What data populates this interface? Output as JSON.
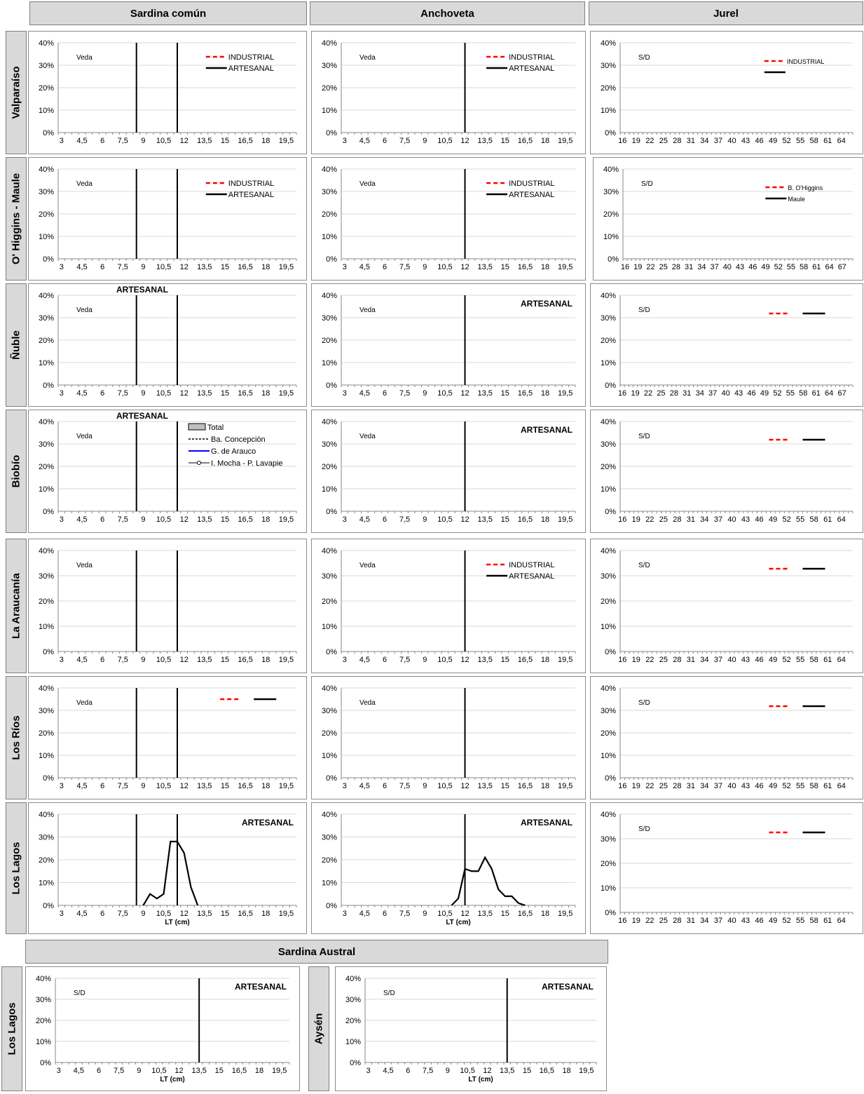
{
  "headers": {
    "top": [
      "Sardina común",
      "Anchoveta",
      "Jurel"
    ],
    "bottom": "Sardina Austral"
  },
  "regions": [
    "Valparaíso",
    "O' Higgins - Maule",
    "Ñuble",
    "Biobío",
    "La Araucanía",
    "Los Ríos",
    "Los Lagos"
  ],
  "bottom_regions": [
    "Los Lagos",
    "Aysén"
  ],
  "colors": {
    "industrial": "#ff0000",
    "artesanal": "#000000",
    "grid": "#d9d9d9",
    "gao": "#0000ff"
  },
  "chart_data": [
    {
      "id": "sc-valparaiso",
      "type": "line",
      "xaxis": "sardina",
      "ylim": [
        0,
        0.4
      ],
      "yticks": [
        "0%",
        "10%",
        "20%",
        "30%",
        "40%"
      ],
      "vlines": [
        "8,5",
        "11,5"
      ],
      "note": "Veda",
      "legend": [
        {
          "name": "INDUSTRIAL",
          "style": "red-dash"
        },
        {
          "name": "ARTESANAL",
          "style": "black"
        }
      ],
      "series": []
    },
    {
      "id": "an-valparaiso",
      "type": "line",
      "xaxis": "sardina",
      "ylim": [
        0,
        0.4
      ],
      "yticks": [
        "0%",
        "10%",
        "20%",
        "30%",
        "40%"
      ],
      "vlines": [
        "12"
      ],
      "note": "Veda",
      "legend": [
        {
          "name": "INDUSTRIAL",
          "style": "red-dash"
        },
        {
          "name": "ARTESANAL",
          "style": "black"
        }
      ],
      "series": []
    },
    {
      "id": "ju-valparaiso",
      "type": "line",
      "xaxis": "jurelA",
      "ylim": [
        0,
        0.4
      ],
      "yticks": [
        "0%",
        "10%",
        "20%",
        "30%",
        "40%"
      ],
      "vlines": [],
      "note": "S/D",
      "legend": [
        {
          "name": "INDUSTRIAL",
          "style": "red-dash"
        },
        {
          "name": "",
          "style": "black"
        }
      ],
      "series": []
    },
    {
      "id": "sc-ohiggins",
      "type": "line",
      "xaxis": "sardina",
      "ylim": [
        0,
        0.4
      ],
      "yticks": [
        "0%",
        "10%",
        "20%",
        "30%",
        "40%"
      ],
      "vlines": [
        "8,5",
        "11,5"
      ],
      "note": "Veda",
      "legend": [
        {
          "name": "INDUSTRIAL",
          "style": "red-dash"
        },
        {
          "name": "ARTESANAL",
          "style": "black"
        }
      ],
      "series": []
    },
    {
      "id": "an-ohiggins",
      "type": "line",
      "xaxis": "sardina",
      "ylim": [
        0,
        0.4
      ],
      "yticks": [
        "0%",
        "10%",
        "20%",
        "30%",
        "40%"
      ],
      "vlines": [
        "12"
      ],
      "note": "Veda",
      "legend": [
        {
          "name": "INDUSTRIAL",
          "style": "red-dash"
        },
        {
          "name": "ARTESANAL",
          "style": "black"
        }
      ],
      "series": []
    },
    {
      "id": "ju-ohiggins",
      "type": "line",
      "xaxis": "jurelB",
      "ylim": [
        0,
        0.4
      ],
      "yticks": [
        "0%",
        "10%",
        "20%",
        "30%",
        "40%"
      ],
      "vlines": [],
      "note": "S/D",
      "legend": [
        {
          "name": "B. O'Higgins",
          "style": "red-dash"
        },
        {
          "name": "Maule",
          "style": "black"
        }
      ],
      "series": []
    },
    {
      "id": "sc-nuble",
      "type": "line",
      "xaxis": "sardina",
      "ylim": [
        0,
        0.4
      ],
      "yticks": [
        "0%",
        "10%",
        "20%",
        "30%",
        "40%"
      ],
      "vlines": [
        "8,5",
        "11,5"
      ],
      "note": "Veda",
      "label": "ARTESANAL",
      "series": []
    },
    {
      "id": "an-nuble",
      "type": "line",
      "xaxis": "sardina",
      "ylim": [
        0,
        0.4
      ],
      "yticks": [
        "0%",
        "10%",
        "20%",
        "30%",
        "40%"
      ],
      "vlines": [
        "12"
      ],
      "note": "Veda",
      "label": "ARTESANAL",
      "series": []
    },
    {
      "id": "ju-nuble",
      "type": "line",
      "xaxis": "jurelB",
      "ylim": [
        0,
        0.4
      ],
      "yticks": [
        "0%",
        "10%",
        "20%",
        "30%",
        "40%"
      ],
      "vlines": [],
      "note": "S/D",
      "legend": [
        {
          "name": "",
          "style": "red-dash"
        },
        {
          "name": "",
          "style": "black"
        }
      ],
      "series": []
    },
    {
      "id": "sc-biobio",
      "type": "line",
      "xaxis": "sardina",
      "ylim": [
        0,
        0.4
      ],
      "yticks": [
        "0%",
        "10%",
        "20%",
        "30%",
        "40%"
      ],
      "vlines": [
        "8,5",
        "11,5"
      ],
      "note": "Veda",
      "label": "ARTESANAL",
      "legend": [
        {
          "name": "Total",
          "style": "gray-box"
        },
        {
          "name": "Ba. Concepción",
          "style": "black-dash"
        },
        {
          "name": "G. de Arauco",
          "style": "blue"
        },
        {
          "name": "I. Mocha - P. Lavapie",
          "style": "marker"
        }
      ],
      "series": []
    },
    {
      "id": "an-biobio",
      "type": "line",
      "xaxis": "sardina",
      "ylim": [
        0,
        0.4
      ],
      "yticks": [
        "0%",
        "10%",
        "20%",
        "30%",
        "40%"
      ],
      "vlines": [
        "12"
      ],
      "note": "Veda",
      "label": "ARTESANAL",
      "series": []
    },
    {
      "id": "ju-biobio",
      "type": "line",
      "xaxis": "jurelA",
      "ylim": [
        0,
        0.4
      ],
      "yticks": [
        "0%",
        "10%",
        "20%",
        "30%",
        "40%"
      ],
      "vlines": [],
      "note": "S/D",
      "legend": [
        {
          "name": "",
          "style": "red-dash"
        },
        {
          "name": "",
          "style": "black"
        }
      ],
      "series": []
    },
    {
      "id": "sc-araucania",
      "type": "line",
      "xaxis": "sardina",
      "ylim": [
        0,
        0.4
      ],
      "yticks": [
        "0%",
        "10%",
        "20%",
        "30%",
        "40%"
      ],
      "vlines": [
        "8,5",
        "11,5"
      ],
      "note": "Veda",
      "series": []
    },
    {
      "id": "an-araucania",
      "type": "line",
      "xaxis": "sardina",
      "ylim": [
        0,
        0.4
      ],
      "yticks": [
        "0%",
        "10%",
        "20%",
        "30%",
        "40%"
      ],
      "vlines": [
        "12"
      ],
      "note": "Veda",
      "legend": [
        {
          "name": "INDUSTRIAL",
          "style": "red-dash"
        },
        {
          "name": "ARTESANAL",
          "style": "black"
        }
      ],
      "series": []
    },
    {
      "id": "ju-araucania",
      "type": "line",
      "xaxis": "jurelA",
      "ylim": [
        0,
        0.4
      ],
      "yticks": [
        "0%",
        "10%",
        "20%",
        "30%",
        "40%"
      ],
      "vlines": [],
      "note": "S/D",
      "legend": [
        {
          "name": "",
          "style": "red-dash"
        },
        {
          "name": "",
          "style": "black"
        }
      ],
      "series": []
    },
    {
      "id": "sc-losrios",
      "type": "line",
      "xaxis": "sardina",
      "ylim": [
        0,
        0.4
      ],
      "yticks": [
        "0%",
        "10%",
        "20%",
        "30%",
        "40%"
      ],
      "vlines": [
        "8,5",
        "11,5"
      ],
      "note": "Veda",
      "legend": [
        {
          "name": "",
          "style": "red-dash"
        },
        {
          "name": "",
          "style": "black"
        }
      ],
      "series": []
    },
    {
      "id": "an-losrios",
      "type": "line",
      "xaxis": "sardina",
      "ylim": [
        0,
        0.4
      ],
      "yticks": [
        "0%",
        "10%",
        "20%",
        "30%",
        "40%"
      ],
      "vlines": [
        "12"
      ],
      "note": "Veda",
      "series": []
    },
    {
      "id": "ju-losrios",
      "type": "line",
      "xaxis": "jurelA",
      "ylim": [
        0,
        0.4
      ],
      "yticks": [
        "0%",
        "10%",
        "20%",
        "30%",
        "40%"
      ],
      "vlines": [],
      "note": "S/D",
      "legend": [
        {
          "name": "",
          "style": "red-dash"
        },
        {
          "name": "",
          "style": "black"
        }
      ],
      "series": []
    },
    {
      "id": "sc-loslagos",
      "type": "line",
      "xaxis": "sardina",
      "ylim": [
        0,
        0.4
      ],
      "yticks": [
        "0%",
        "10%",
        "20%",
        "30%",
        "40%"
      ],
      "vlines": [
        "8,5",
        "11,5"
      ],
      "label": "ARTESANAL",
      "xlabel": "LT (cm)",
      "series": [
        {
          "x": [
            "9",
            "9,5",
            "10",
            "10,5",
            "11",
            "11,5",
            "12",
            "12,5",
            "13"
          ],
          "y": [
            0.0,
            0.05,
            0.03,
            0.05,
            0.28,
            0.28,
            0.23,
            0.08,
            0.0
          ]
        }
      ]
    },
    {
      "id": "an-loslagos",
      "type": "line",
      "xaxis": "sardina",
      "ylim": [
        0,
        0.4
      ],
      "yticks": [
        "0%",
        "10%",
        "20%",
        "30%",
        "40%"
      ],
      "vlines": [
        "12"
      ],
      "label": "ARTESANAL",
      "xlabel": "LT (cm)",
      "series": [
        {
          "x": [
            "11",
            "11,5",
            "12",
            "12,5",
            "13",
            "13,5",
            "14",
            "14,5",
            "15",
            "15,5",
            "16",
            "16,5"
          ],
          "y": [
            0.0,
            0.03,
            0.16,
            0.15,
            0.15,
            0.21,
            0.16,
            0.07,
            0.04,
            0.04,
            0.01,
            0.0
          ]
        }
      ]
    },
    {
      "id": "ju-loslagos",
      "type": "line",
      "xaxis": "jurelA",
      "ylim": [
        0,
        0.4
      ],
      "yticks": [
        "0%",
        "10%",
        "20%",
        "30%",
        "40%"
      ],
      "vlines": [],
      "note": "S/D",
      "legend": [
        {
          "name": "",
          "style": "red-dash"
        },
        {
          "name": "",
          "style": "black"
        }
      ],
      "series": []
    },
    {
      "id": "sa-loslagos",
      "type": "line",
      "xaxis": "sardina",
      "ylim": [
        0,
        0.4
      ],
      "yticks": [
        "0%",
        "10%",
        "20%",
        "30%",
        "40%"
      ],
      "vlines": [
        "13,5"
      ],
      "note": "S/D",
      "label": "ARTESANAL",
      "xlabel": "LT (cm)",
      "series": []
    },
    {
      "id": "sa-aysen",
      "type": "line",
      "xaxis": "sardina",
      "ylim": [
        0,
        0.4
      ],
      "yticks": [
        "0%",
        "10%",
        "20%",
        "30%",
        "40%"
      ],
      "vlines": [
        "13,5"
      ],
      "note": "S/D",
      "label": "ARTESANAL",
      "xlabel": "LT (cm)",
      "series": []
    }
  ],
  "axes": {
    "sardina": {
      "ticks": [
        "3",
        "4,5",
        "6",
        "7,5",
        "9",
        "10,5",
        "12",
        "13,5",
        "15",
        "16,5",
        "18",
        "19,5"
      ],
      "categories": [
        "3",
        "3,5",
        "4",
        "4,5",
        "5",
        "5,5",
        "6",
        "6,5",
        "7",
        "7,5",
        "8",
        "8,5",
        "9",
        "9,5",
        "10",
        "10,5",
        "11",
        "11,5",
        "12",
        "12,5",
        "13",
        "13,5",
        "14",
        "14,5",
        "15",
        "15,5",
        "16",
        "16,5",
        "17",
        "17,5",
        "18",
        "18,5",
        "19",
        "19,5",
        "20"
      ]
    },
    "jurelA": {
      "ticks": [
        "16",
        "19",
        "22",
        "25",
        "28",
        "31",
        "34",
        "37",
        "40",
        "43",
        "46",
        "49",
        "52",
        "55",
        "58",
        "61",
        "64"
      ],
      "count": 51
    },
    "jurelB": {
      "ticks": [
        "16",
        "19",
        "22",
        "25",
        "28",
        "31",
        "34",
        "37",
        "40",
        "43",
        "46",
        "49",
        "52",
        "55",
        "58",
        "61",
        "64",
        "67"
      ],
      "count": 54
    }
  }
}
